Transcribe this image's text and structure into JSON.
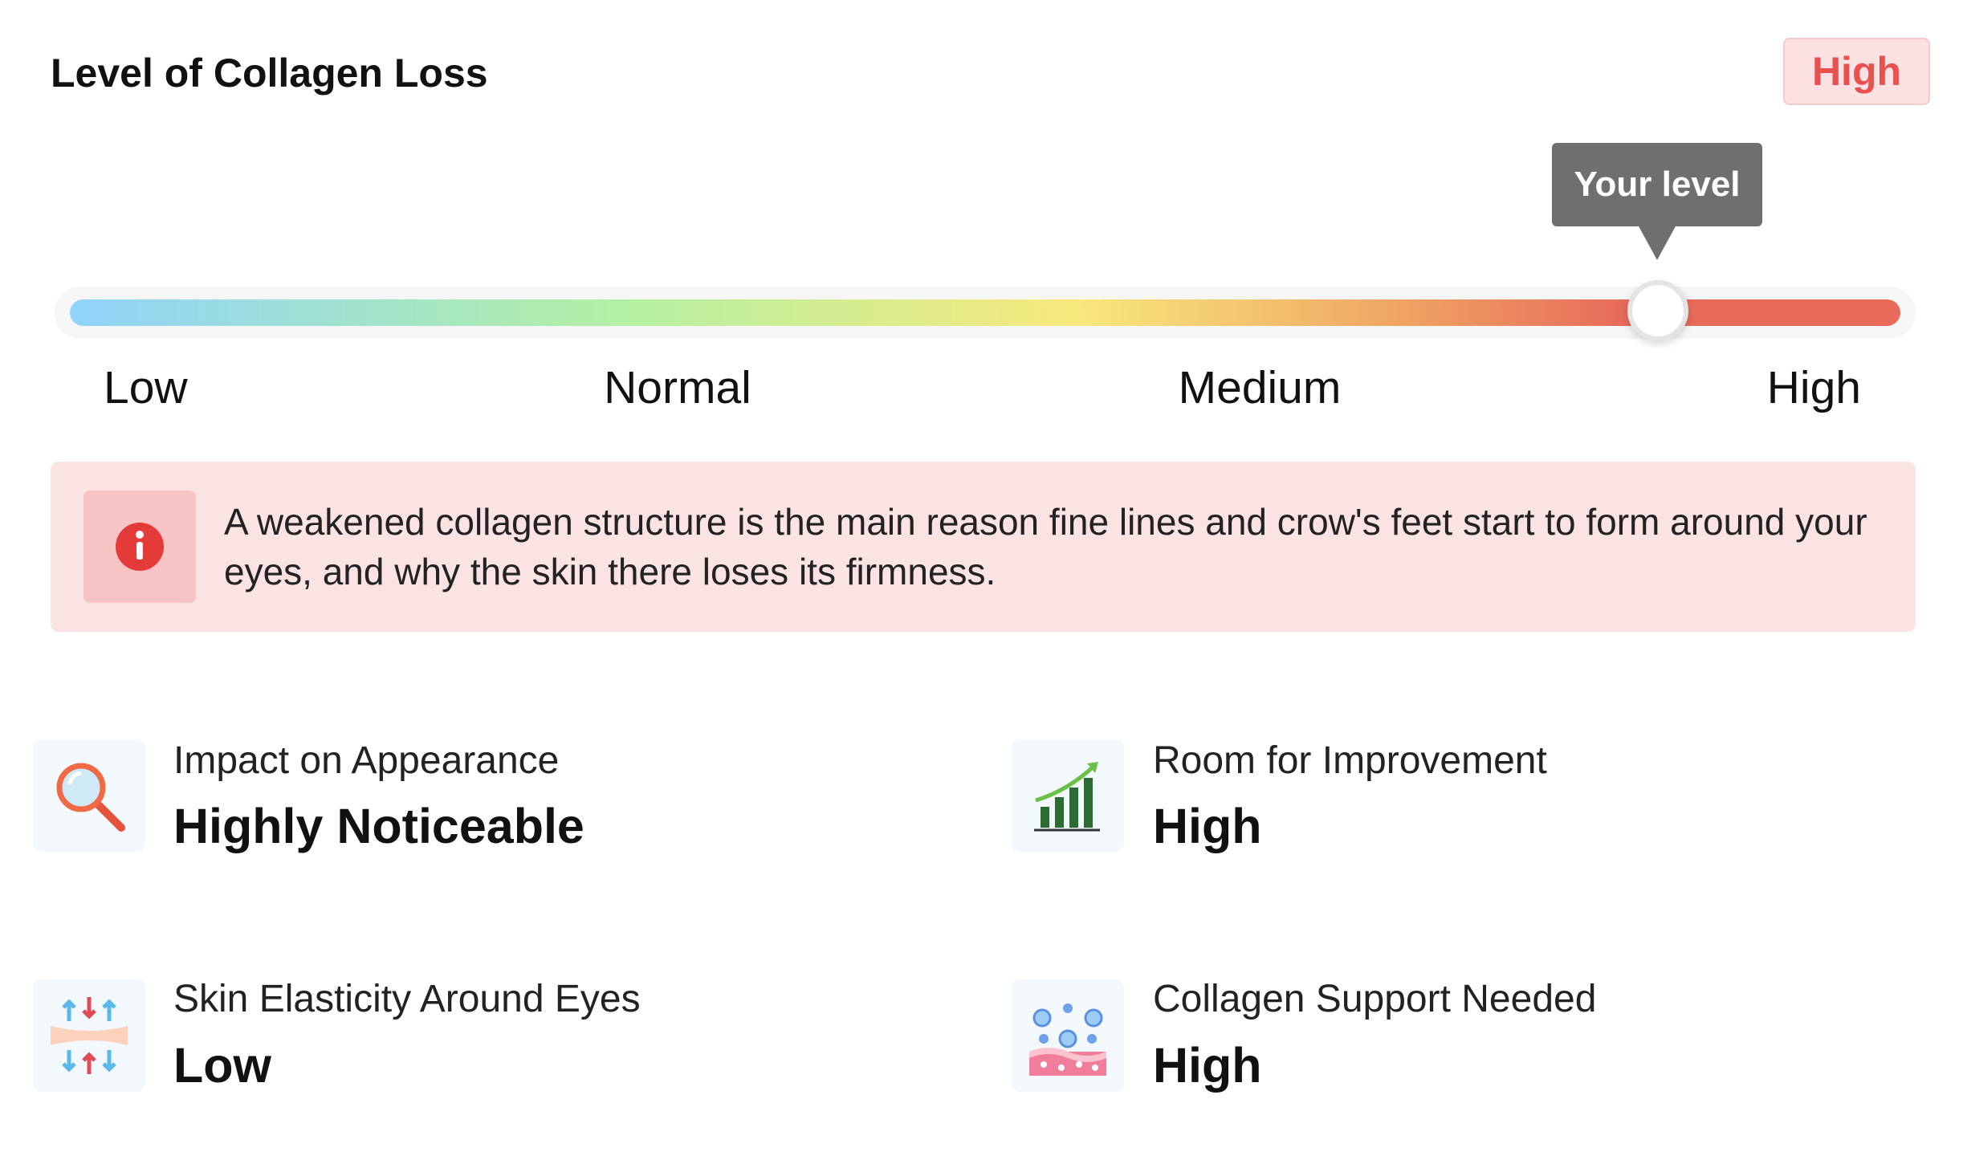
{
  "header": {
    "title": "Level of Collagen Loss",
    "badge": "High"
  },
  "slider": {
    "tooltip": "Your level",
    "labels": [
      "Low",
      "Normal",
      "Medium",
      "High"
    ]
  },
  "info": {
    "text": "A weakened collagen structure is the main reason fine lines and crow's feet start to form around your eyes, and why the skin there loses its firmness."
  },
  "metrics": [
    {
      "label": "Impact on Appearance",
      "value": "Highly Noticeable"
    },
    {
      "label": "Room for Improvement",
      "value": "High"
    },
    {
      "label": "Skin Elasticity Around Eyes",
      "value": "Low"
    },
    {
      "label": "Collagen Support Needed",
      "value": "High"
    }
  ]
}
